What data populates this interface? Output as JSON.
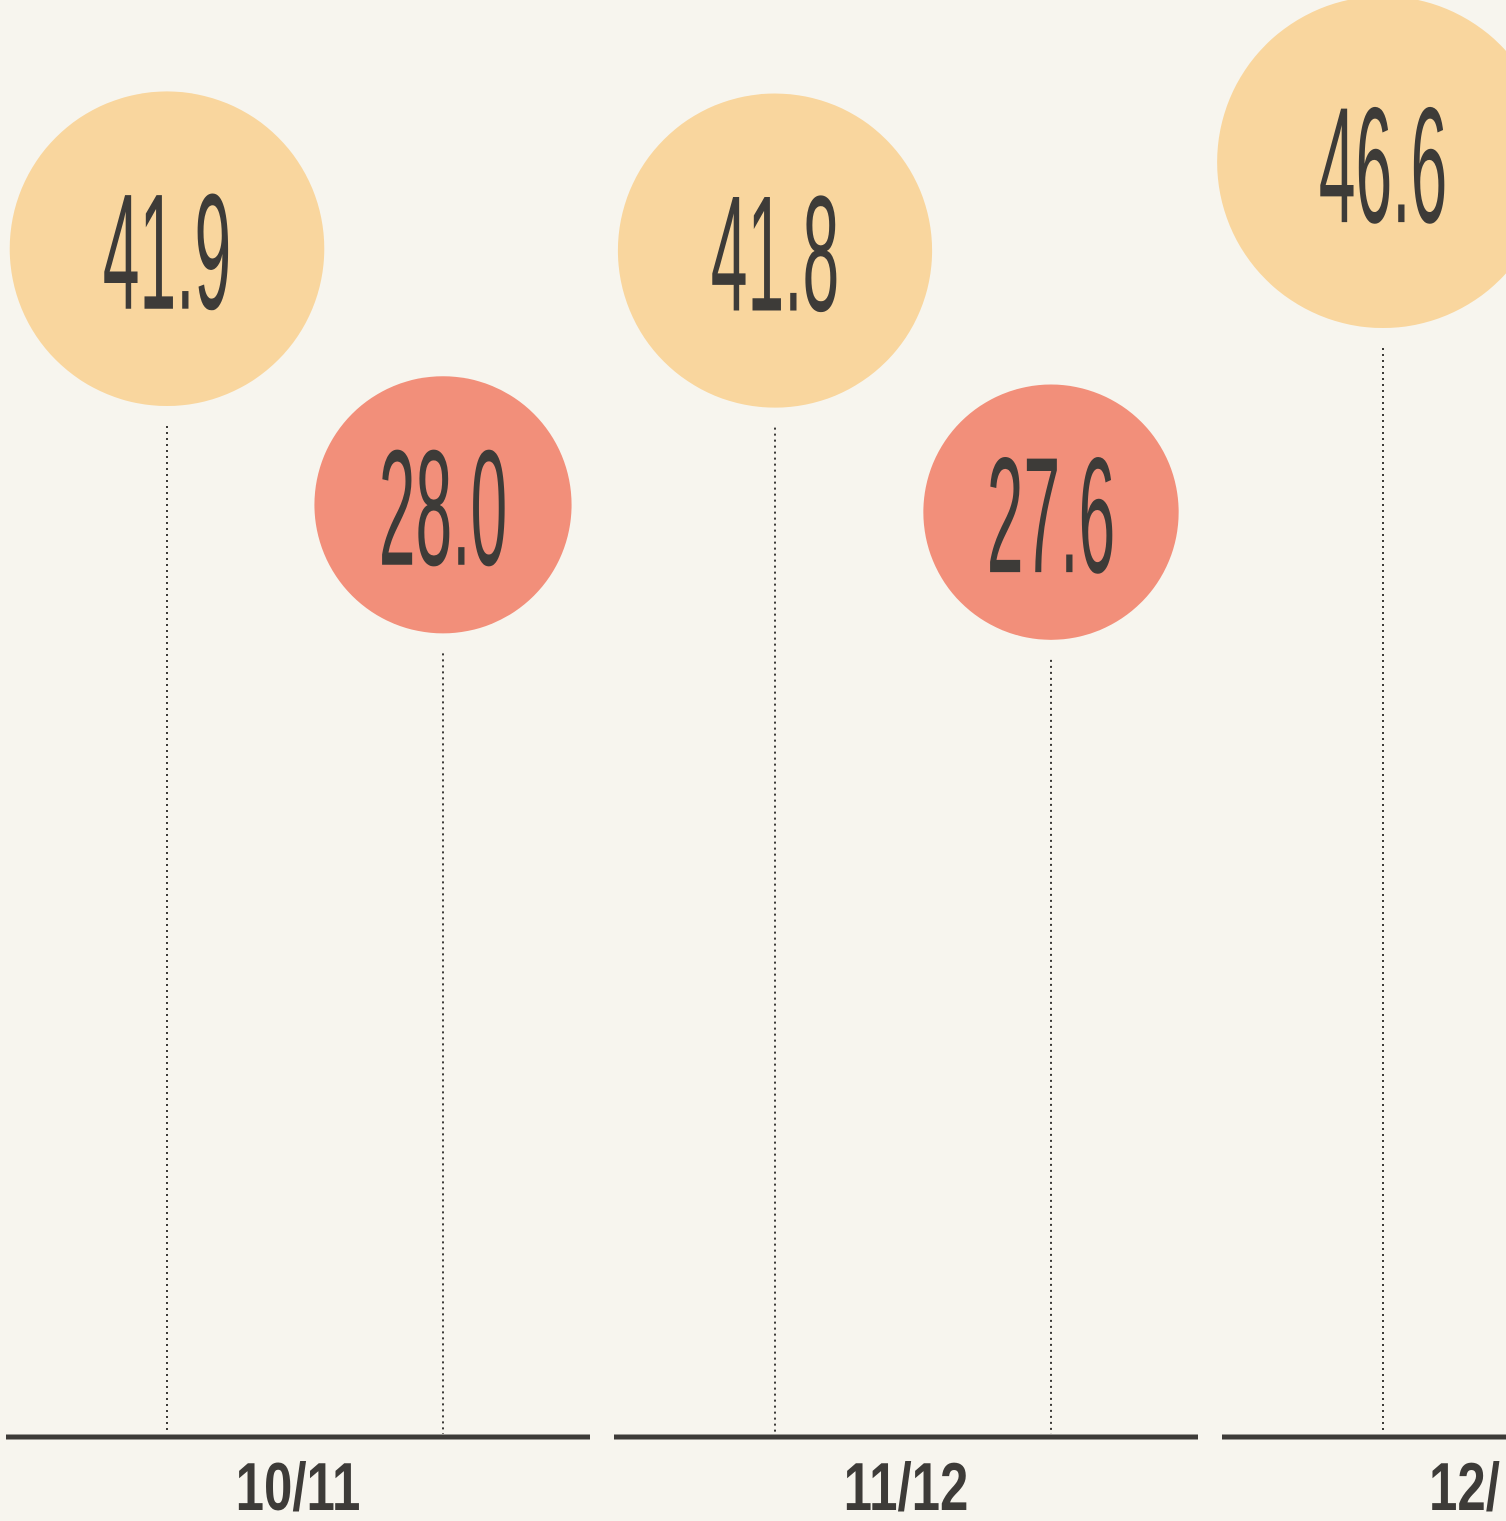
{
  "chart_data": {
    "type": "bubble-lollipop",
    "categories": [
      "10/11",
      "11/12",
      "12/"
    ],
    "series": [
      {
        "color": "#f9d69e",
        "values": [
          41.9,
          41.8,
          46.6
        ],
        "value_labels": [
          "41.9",
          "41.8",
          "46.6"
        ]
      },
      {
        "color": "#f28f7a",
        "values": [
          28.0,
          27.6,
          null
        ],
        "value_labels": [
          "28.0",
          "27.6",
          null
        ]
      }
    ],
    "ylim": [
      -22.6,
      55.4
    ]
  }
}
